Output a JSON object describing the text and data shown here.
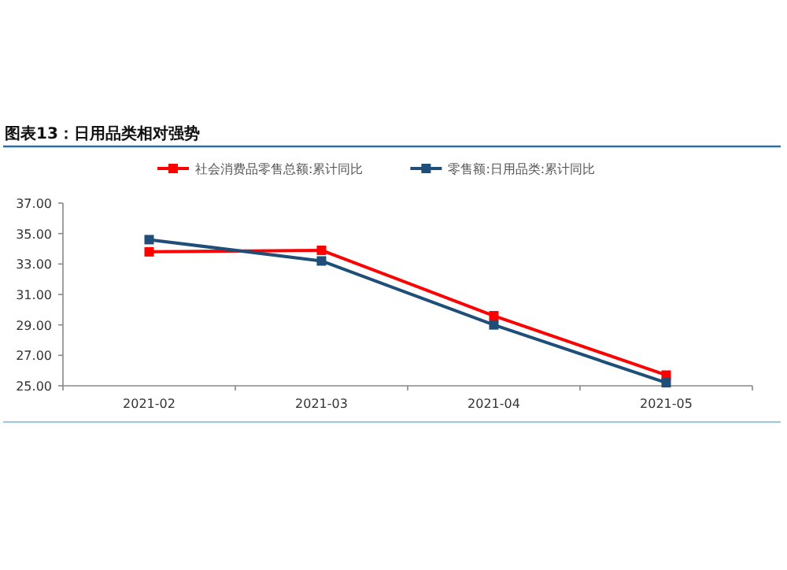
{
  "chart_data": {
    "type": "line",
    "title": "图表13：日用品类相对强势",
    "categories": [
      "2021-02",
      "2021-03",
      "2021-04",
      "2021-05"
    ],
    "series": [
      {
        "name": "社会消费品零售总额:累计同比",
        "color": "#ff0000",
        "values": [
          33.8,
          33.9,
          29.6,
          25.7
        ]
      },
      {
        "name": "零售额:日用品类:累计同比",
        "color": "#1f4e79",
        "values": [
          34.6,
          33.2,
          29.0,
          25.2
        ]
      }
    ],
    "ylim": [
      25,
      37
    ],
    "yticks": [
      {
        "value": 25,
        "label": "25.00"
      },
      {
        "value": 27,
        "label": "27.00"
      },
      {
        "value": 29,
        "label": "29.00"
      },
      {
        "value": 31,
        "label": "31.00"
      },
      {
        "value": 33,
        "label": "33.00"
      },
      {
        "value": 35,
        "label": "35.00"
      },
      {
        "value": 37,
        "label": "37.00"
      }
    ],
    "legend": "top",
    "marker": "square"
  }
}
